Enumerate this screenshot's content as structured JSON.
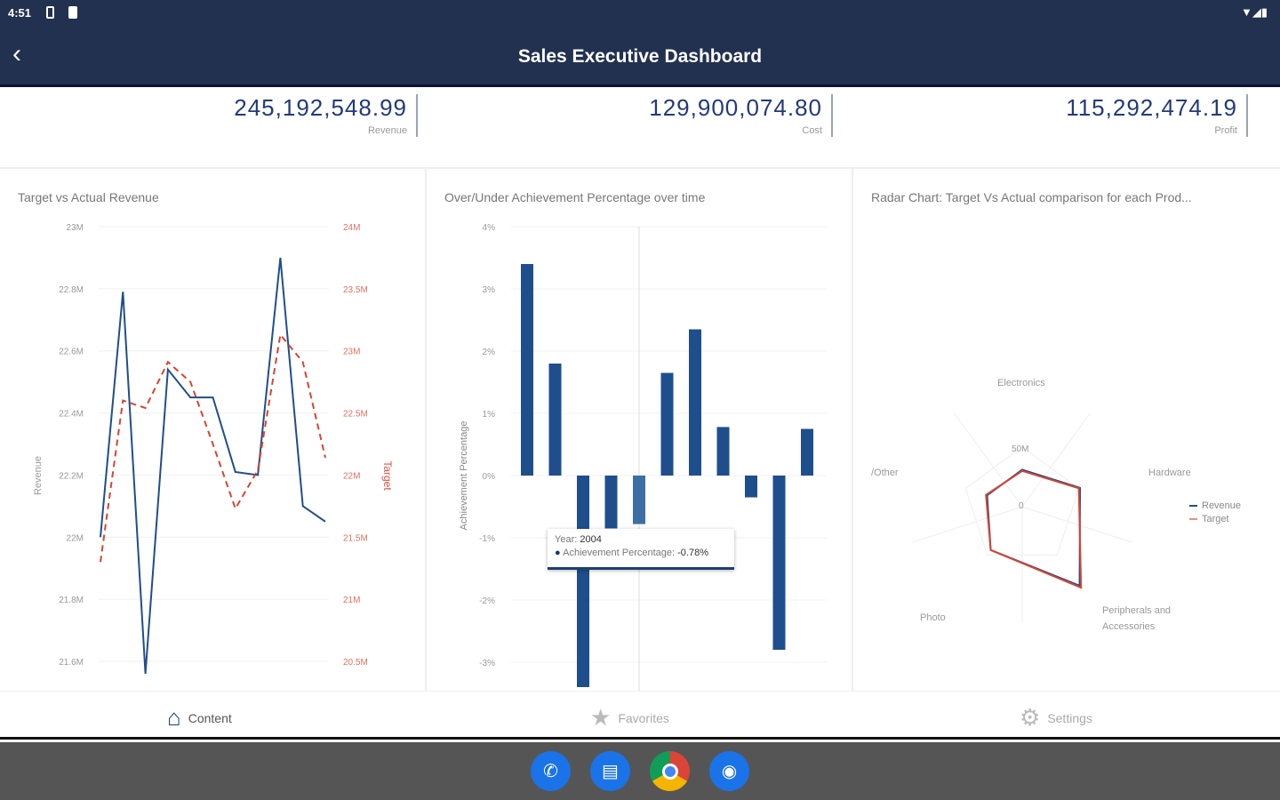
{
  "status": {
    "time": "4:51"
  },
  "header": {
    "title": "Sales Executive Dashboard",
    "back_icon": "chevron-left-icon"
  },
  "kpis": [
    {
      "value": "245,192,548.99",
      "label": "Revenue"
    },
    {
      "value": "129,900,074.80",
      "label": "Cost"
    },
    {
      "value": "115,292,474.19",
      "label": "Profit"
    }
  ],
  "colors": {
    "navy": "#233150",
    "revenue": "#1f4e8c",
    "target": "#d9432f"
  },
  "chart_data": [
    {
      "type": "line",
      "title": "Target vs Actual Revenue",
      "ylabel": "Revenue",
      "y2label": "Target",
      "yticks": [
        "23M",
        "22.8M",
        "22.6M",
        "22.4M",
        "22.2M",
        "22M",
        "21.8M",
        "21.6M"
      ],
      "ylim": [
        21.6,
        23.0
      ],
      "y2ticks": [
        "24M",
        "23.5M",
        "23M",
        "22.5M",
        "22M",
        "21.5M",
        "21M",
        "20.5M"
      ],
      "y2lim": [
        20.5,
        24.0
      ],
      "series": [
        {
          "name": "Revenue",
          "axis": "left",
          "values": [
            22.0,
            22.79,
            21.56,
            22.54,
            22.45,
            22.45,
            22.21,
            22.2,
            22.9,
            22.1,
            22.05
          ]
        },
        {
          "name": "Target",
          "axis": "right",
          "values": [
            21.3,
            22.6,
            22.54,
            22.91,
            22.75,
            22.25,
            21.73,
            22.04,
            23.13,
            22.91,
            22.14
          ]
        }
      ]
    },
    {
      "type": "bar",
      "title": "Over/Under Achievement Percentage over time",
      "ylabel": "Achievement Percentage",
      "yticks": [
        "4%",
        "3%",
        "2%",
        "1%",
        "0%",
        "-1%",
        "-2%",
        "-3%"
      ],
      "ylim": [
        -3.5,
        4
      ],
      "values": [
        3.4,
        1.8,
        -3.4,
        -0.85,
        -0.78,
        1.65,
        2.35,
        0.78,
        -0.35,
        -2.8,
        0.75
      ],
      "tooltip": {
        "year_label": "Year:",
        "year": "2004",
        "series": "Achievement Percentage:",
        "value": "-0.78%"
      }
    },
    {
      "type": "radar",
      "title": "Radar Chart: Target Vs Actual comparison for each Prod...",
      "categories": [
        "Electronics",
        "Hardware",
        "Peripherals and Accessories",
        "Photo",
        "/Other"
      ],
      "ticks": [
        "0",
        "50M"
      ],
      "series": [
        {
          "name": "Revenue",
          "values": [
            31,
            51,
            82,
            45,
            31
          ]
        },
        {
          "name": "Target",
          "values": [
            30,
            50,
            84,
            45,
            32
          ]
        }
      ]
    }
  ],
  "nav": [
    {
      "label": "Content",
      "icon": "home-icon"
    },
    {
      "label": "Favorites",
      "icon": "star-icon"
    },
    {
      "label": "Settings",
      "icon": "gear-icon"
    }
  ]
}
